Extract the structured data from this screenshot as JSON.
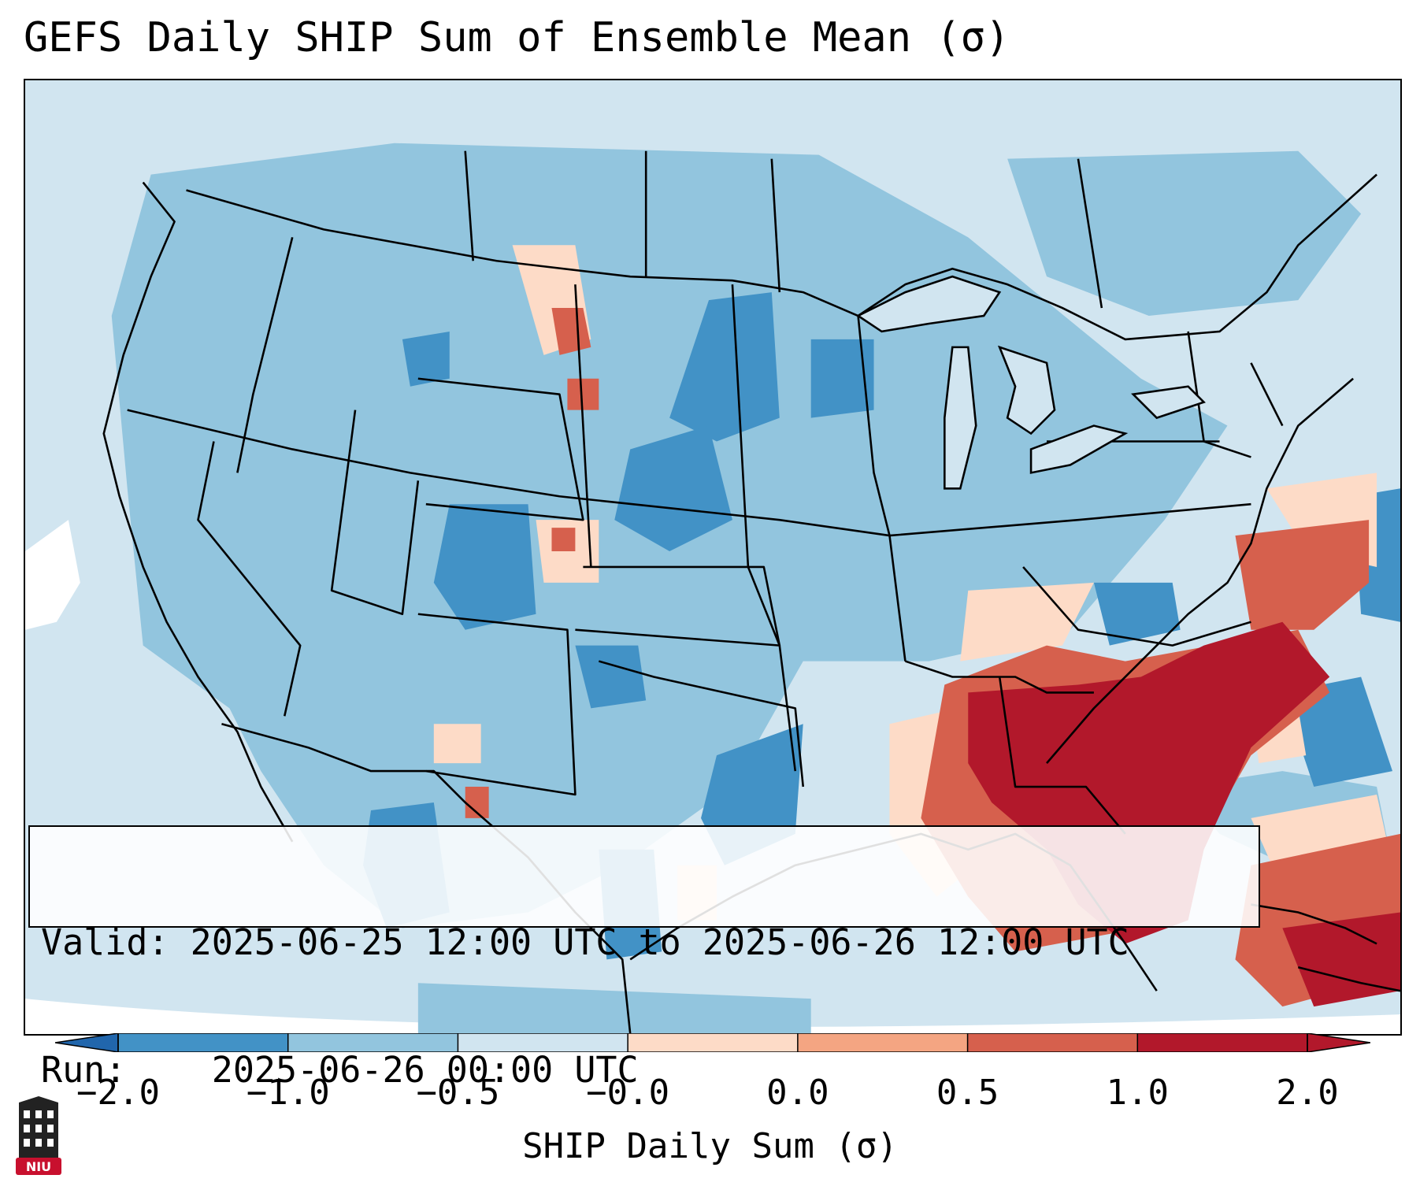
{
  "title": "GEFS Daily SHIP Sum of Ensemble Mean (σ)",
  "info": {
    "valid_label": "Valid:",
    "valid_value": "2025-06-25 12:00 UTC to 2025-06-26 12:00 UTC",
    "run_label": "Run:  ",
    "run_value": "2025-06-26 00:00 UTC"
  },
  "colorbar": {
    "label": "SHIP Daily Sum (σ)",
    "ticks": [
      "−2.0",
      "−1.0",
      "−0.5",
      "−0.0",
      "0.0",
      "0.5",
      "1.0",
      "2.0"
    ],
    "colors": [
      "#4292c6",
      "#92c5de",
      "#d1e5f0",
      "#fddbc7",
      "#f4a582",
      "#d6604d",
      "#b2182b"
    ],
    "extend_low_color": "#2166ac",
    "extend_high_color": "#b2182b",
    "background_color": "#d1e5f0"
  },
  "logo": {
    "text": "NIU",
    "color": "#c8102e"
  },
  "map": {
    "region": "CONUS",
    "projection": "Lambert conformal",
    "features": [
      "coastlines",
      "state-borders",
      "country-borders"
    ]
  }
}
